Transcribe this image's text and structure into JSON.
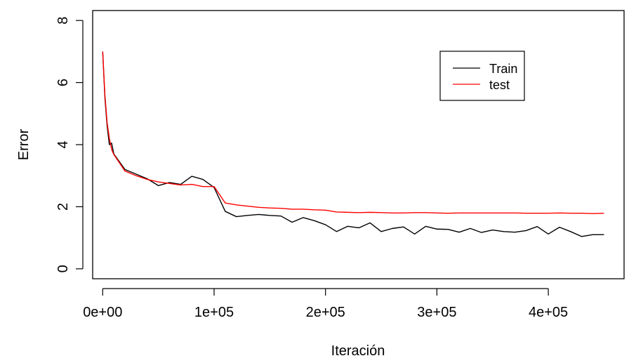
{
  "chart_data": {
    "type": "line",
    "title": "",
    "xlabel": "Iteración",
    "ylabel": "Error",
    "xlim": [
      -9000,
      468000
    ],
    "ylim": [
      -0.32,
      8.32
    ],
    "grid": false,
    "legend_position": "top-right",
    "x_ticks": [
      0,
      100000,
      200000,
      300000,
      400000
    ],
    "x_tick_labels": [
      "0e+00",
      "1e+05",
      "2e+05",
      "3e+05",
      "4e+05"
    ],
    "y_ticks": [
      0,
      2,
      4,
      6,
      8
    ],
    "y_tick_labels": [
      "0",
      "2",
      "4",
      "6",
      "8"
    ],
    "series": [
      {
        "name": "Train",
        "color": "#000000",
        "x": [
          0,
          2000,
          4000,
          6000,
          8000,
          10000,
          20000,
          30000,
          40000,
          50000,
          60000,
          70000,
          80000,
          90000,
          100000,
          110000,
          120000,
          130000,
          140000,
          150000,
          160000,
          170000,
          180000,
          190000,
          200000,
          210000,
          220000,
          230000,
          240000,
          250000,
          260000,
          270000,
          280000,
          290000,
          300000,
          310000,
          320000,
          330000,
          340000,
          350000,
          360000,
          370000,
          380000,
          390000,
          400000,
          410000,
          420000,
          430000,
          440000,
          450000
        ],
        "y": [
          7.0,
          5.5,
          4.6,
          4.0,
          4.05,
          3.7,
          3.2,
          3.05,
          2.9,
          2.68,
          2.78,
          2.72,
          2.98,
          2.88,
          2.62,
          1.85,
          1.68,
          1.72,
          1.75,
          1.72,
          1.7,
          1.5,
          1.65,
          1.55,
          1.42,
          1.2,
          1.37,
          1.32,
          1.48,
          1.2,
          1.3,
          1.35,
          1.12,
          1.37,
          1.28,
          1.27,
          1.18,
          1.3,
          1.17,
          1.25,
          1.2,
          1.18,
          1.23,
          1.36,
          1.12,
          1.34,
          1.2,
          1.04,
          1.1,
          1.1
        ]
      },
      {
        "name": "test",
        "color": "#ff0000",
        "x": [
          0,
          2000,
          4000,
          6000,
          8000,
          10000,
          20000,
          30000,
          40000,
          50000,
          60000,
          70000,
          80000,
          90000,
          100000,
          110000,
          120000,
          130000,
          140000,
          150000,
          160000,
          170000,
          180000,
          190000,
          200000,
          210000,
          220000,
          230000,
          240000,
          250000,
          260000,
          270000,
          280000,
          290000,
          300000,
          310000,
          320000,
          330000,
          340000,
          350000,
          360000,
          370000,
          380000,
          390000,
          400000,
          410000,
          420000,
          430000,
          440000,
          450000
        ],
        "y": [
          7.0,
          5.6,
          4.7,
          4.2,
          3.85,
          3.68,
          3.15,
          3.0,
          2.88,
          2.8,
          2.75,
          2.7,
          2.72,
          2.65,
          2.65,
          2.12,
          2.06,
          2.02,
          1.98,
          1.96,
          1.95,
          1.92,
          1.92,
          1.9,
          1.89,
          1.83,
          1.82,
          1.81,
          1.82,
          1.81,
          1.8,
          1.8,
          1.81,
          1.81,
          1.8,
          1.79,
          1.8,
          1.8,
          1.8,
          1.8,
          1.8,
          1.8,
          1.79,
          1.79,
          1.79,
          1.8,
          1.79,
          1.79,
          1.78,
          1.79
        ]
      }
    ]
  }
}
